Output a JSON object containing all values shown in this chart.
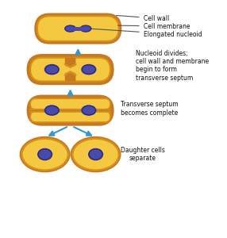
{
  "bg_color": "#ffffff",
  "cell_fill": "#f5c842",
  "cell_wall_color": "#c87820",
  "cell_membrane_color": "#d4921a",
  "nucleoid_color": "#4a4aaa",
  "nucleoid_edge": "#2a2a88",
  "septum_color": "#c87820",
  "arrow_color": "#3399cc",
  "text_color": "#222222",
  "label_color": "#111111",
  "annotations": {
    "cell_wall": "Cell wall",
    "cell_membrane": "Cell membrane",
    "elongated_nucleoid": "Elongated nucleoid"
  },
  "stage_labels": [
    "",
    "Nucleoid divides;\ncell wall and membrane\nbegin to form\ntransverse septum",
    "Transverse septum\nbecomes complete",
    "Daughter cells\nseparate"
  ],
  "figsize": [
    2.86,
    3.0
  ],
  "dpi": 100
}
